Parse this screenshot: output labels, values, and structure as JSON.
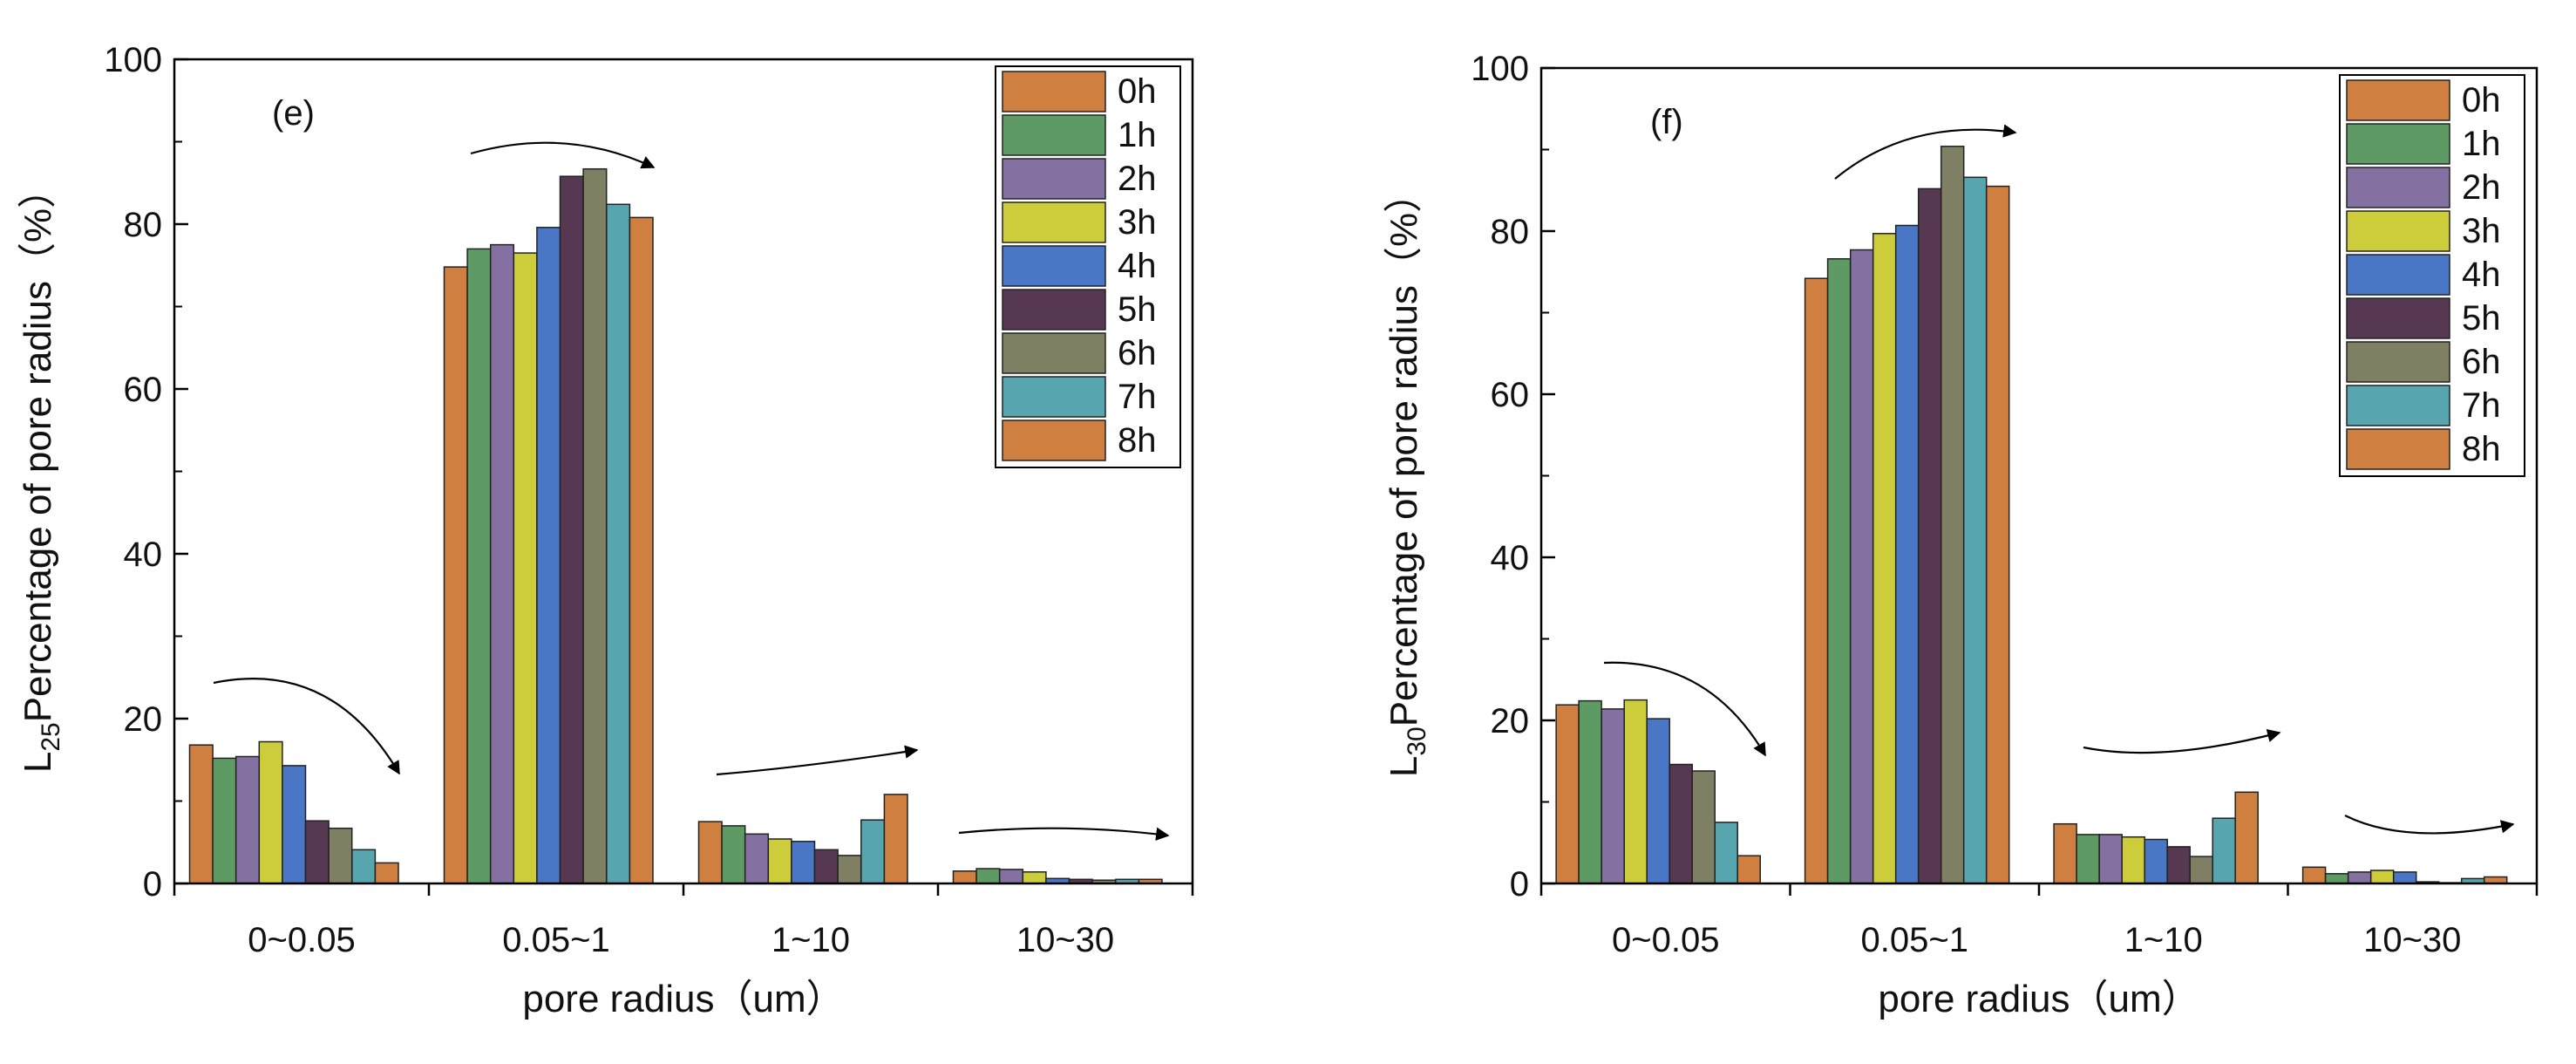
{
  "colors": {
    "0h": "#cf7f3f",
    "1h": "#5e9a64",
    "2h": "#8470a1",
    "3h": "#cdcd3c",
    "4h": "#4a76c6",
    "5h": "#573852",
    "6h": "#7f7f63",
    "7h": "#56a5af",
    "8h": "#cf7f3f",
    "frame": "#000000"
  },
  "chart_data": [
    {
      "type": "bar",
      "panel_label": "(e)",
      "ylabel_prefix": "L",
      "ylabel_subscript": "25",
      "ylabel_main": "Percentage of pore radius（%）",
      "xlabel": "pore radius（um）",
      "categories": [
        "0~0.05",
        "0.05~1",
        "1~10",
        "10~30"
      ],
      "ylim": [
        0,
        100
      ],
      "yticks": [
        "0",
        "20",
        "40",
        "60",
        "80",
        "100"
      ],
      "legend_position": "top-right",
      "series": [
        {
          "name": "0h",
          "values": [
            16.8,
            74.8,
            7.5,
            1.5
          ]
        },
        {
          "name": "1h",
          "values": [
            15.2,
            77.0,
            7.0,
            1.8
          ]
        },
        {
          "name": "2h",
          "values": [
            15.4,
            77.5,
            6.0,
            1.7
          ]
        },
        {
          "name": "3h",
          "values": [
            17.2,
            76.5,
            5.4,
            1.4
          ]
        },
        {
          "name": "4h",
          "values": [
            14.3,
            79.6,
            5.1,
            0.6
          ]
        },
        {
          "name": "5h",
          "values": [
            7.6,
            85.8,
            4.1,
            0.5
          ]
        },
        {
          "name": "6h",
          "values": [
            6.7,
            86.7,
            3.4,
            0.4
          ]
        },
        {
          "name": "7h",
          "values": [
            4.1,
            82.4,
            7.7,
            0.5
          ]
        },
        {
          "name": "8h",
          "values": [
            2.5,
            80.8,
            10.8,
            0.5
          ]
        }
      ]
    },
    {
      "type": "bar",
      "panel_label": "(f)",
      "ylabel_prefix": "L",
      "ylabel_subscript": "30",
      "ylabel_main": "Percentage of pore radius（%）",
      "xlabel": "pore radius（um）",
      "categories": [
        "0~0.05",
        "0.05~1",
        "1~10",
        "10~30"
      ],
      "ylim": [
        0,
        100
      ],
      "yticks": [
        "0",
        "20",
        "40",
        "60",
        "80",
        "100"
      ],
      "legend_position": "top-right",
      "series": [
        {
          "name": "0h",
          "values": [
            21.9,
            74.2,
            7.3,
            2.0
          ]
        },
        {
          "name": "1h",
          "values": [
            22.4,
            76.6,
            6.0,
            1.2
          ]
        },
        {
          "name": "2h",
          "values": [
            21.4,
            77.7,
            6.0,
            1.4
          ]
        },
        {
          "name": "3h",
          "values": [
            22.5,
            79.7,
            5.7,
            1.6
          ]
        },
        {
          "name": "4h",
          "values": [
            20.2,
            80.7,
            5.4,
            1.4
          ]
        },
        {
          "name": "5h",
          "values": [
            14.6,
            85.2,
            4.5,
            0.2
          ]
        },
        {
          "name": "6h",
          "values": [
            13.8,
            90.4,
            3.3,
            0.1
          ]
        },
        {
          "name": "7h",
          "values": [
            7.5,
            86.6,
            8.0,
            0.6
          ]
        },
        {
          "name": "8h",
          "values": [
            3.4,
            85.5,
            11.2,
            0.8
          ]
        }
      ]
    }
  ]
}
